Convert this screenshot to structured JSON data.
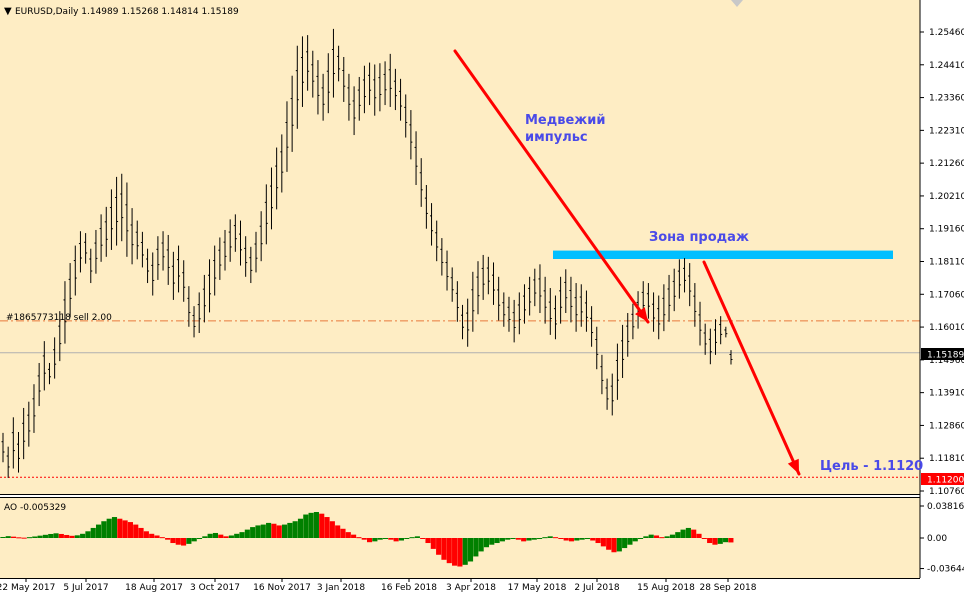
{
  "colors": {
    "background": "#FEEDC4",
    "candles": "#000000",
    "ao_up": "#008000",
    "ao_down": "#FF0000",
    "arrow": "#FF0000",
    "zone": "#00BFFF",
    "annotation_text": "#4A4AE8",
    "target_line": "#FF0000",
    "target_label_bg": "#FF0000",
    "price_label_bg": "#000000"
  },
  "header": {
    "symbol_line": "EURUSD,Daily  1.14989 1.15268 1.14814 1.15189",
    "dropdown_icon": "triangle-down-icon"
  },
  "chart_data": [
    {
      "type": "candlestick",
      "title": "EURUSD,Daily",
      "ohlc_last": {
        "open": 1.14989,
        "high": 1.15268,
        "low": 1.14814,
        "close": 1.15189
      },
      "ylim": [
        1.1062,
        1.2602
      ],
      "y_ticks": [
        "1.25460",
        "1.24410",
        "1.23360",
        "1.22310",
        "1.21260",
        "1.20210",
        "1.19160",
        "1.18110",
        "1.17060",
        "1.16010",
        "1.14960",
        "1.13910",
        "1.12860",
        "1.11810",
        "1.10760"
      ],
      "x_ticks": [
        "22 May 2017",
        "5 Jul 2017",
        "18 Aug 2017",
        "3 Oct 2017",
        "16 Nov 2017",
        "3 Jan 2018",
        "16 Feb 2018",
        "3 Apr 2018",
        "17 May 2018",
        "2 Jul 2018",
        "15 Aug 2018",
        "28 Sep 2018"
      ],
      "series": [
        {
          "name": "EURUSD",
          "points": [
            [
              1.1168,
              1.1262
            ],
            [
              1.1118,
              1.1218
            ],
            [
              1.1148,
              1.1312
            ],
            [
              1.1135,
              1.1265
            ],
            [
              1.1178,
              1.1342
            ],
            [
              1.1218,
              1.1362
            ],
            [
              1.1262,
              1.1418
            ],
            [
              1.1348,
              1.1486
            ],
            [
              1.1398,
              1.1556
            ],
            [
              1.1418,
              1.1486
            ],
            [
              1.1436,
              1.1568
            ],
            [
              1.1492,
              1.1652
            ],
            [
              1.1548,
              1.1748
            ],
            [
              1.1632,
              1.1806
            ],
            [
              1.1702,
              1.1862
            ],
            [
              1.1776,
              1.1908
            ],
            [
              1.1804,
              1.1902
            ],
            [
              1.1742,
              1.1852
            ],
            [
              1.1772,
              1.1912
            ],
            [
              1.181,
              1.1962
            ],
            [
              1.1826,
              1.1986
            ],
            [
              1.1848,
              1.2042
            ],
            [
              1.1862,
              1.2082
            ],
            [
              1.1876,
              1.2092
            ],
            [
              1.1826,
              1.2064
            ],
            [
              1.1802,
              1.1982
            ],
            [
              1.1818,
              1.1942
            ],
            [
              1.1792,
              1.1906
            ],
            [
              1.1742,
              1.1852
            ],
            [
              1.1702,
              1.184
            ],
            [
              1.1752,
              1.1892
            ],
            [
              1.1782,
              1.1908
            ],
            [
              1.1736,
              1.1896
            ],
            [
              1.1688,
              1.1842
            ],
            [
              1.1712,
              1.1862
            ],
            [
              1.1682,
              1.1815
            ],
            [
              1.1602,
              1.1732
            ],
            [
              1.1568,
              1.1668
            ],
            [
              1.1582,
              1.1712
            ],
            [
              1.1616,
              1.1768
            ],
            [
              1.1648,
              1.1818
            ],
            [
              1.1702,
              1.1862
            ],
            [
              1.1752,
              1.1888
            ],
            [
              1.1782,
              1.1912
            ],
            [
              1.181,
              1.1946
            ],
            [
              1.1842,
              1.1962
            ],
            [
              1.1798,
              1.1942
            ],
            [
              1.1762,
              1.1892
            ],
            [
              1.1742,
              1.1858
            ],
            [
              1.1776,
              1.1906
            ],
            [
              1.1812,
              1.1972
            ],
            [
              1.1866,
              1.2058
            ],
            [
              1.1914,
              1.2112
            ],
            [
              1.1978,
              1.2176
            ],
            [
              1.2032,
              1.2218
            ],
            [
              1.2098,
              1.2324
            ],
            [
              1.2162,
              1.2406
            ],
            [
              1.2236,
              1.2502
            ],
            [
              1.2306,
              1.2532
            ],
            [
              1.2358,
              1.2536
            ],
            [
              1.2336,
              1.2486
            ],
            [
              1.2282,
              1.2456
            ],
            [
              1.2262,
              1.2412
            ],
            [
              1.2286,
              1.2478
            ],
            [
              1.2336,
              1.2556
            ],
            [
              1.2388,
              1.2502
            ],
            [
              1.2322,
              1.2466
            ],
            [
              1.2262,
              1.2412
            ],
            [
              1.2216,
              1.2372
            ],
            [
              1.2262,
              1.2402
            ],
            [
              1.2286,
              1.2438
            ],
            [
              1.2312,
              1.2448
            ],
            [
              1.2278,
              1.2442
            ],
            [
              1.2292,
              1.2446
            ],
            [
              1.2312,
              1.2452
            ],
            [
              1.2306,
              1.2476
            ],
            [
              1.2296,
              1.2428
            ],
            [
              1.2262,
              1.2396
            ],
            [
              1.2208,
              1.2346
            ],
            [
              1.2138,
              1.2296
            ],
            [
              1.2056,
              1.2228
            ],
            [
              1.1986,
              1.2142
            ],
            [
              1.1916,
              1.2056
            ],
            [
              1.1862,
              1.1998
            ],
            [
              1.1812,
              1.1942
            ],
            [
              1.1766,
              1.1886
            ],
            [
              1.1718,
              1.1846
            ],
            [
              1.1682,
              1.1792
            ],
            [
              1.1618,
              1.1748
            ],
            [
              1.1562,
              1.1672
            ],
            [
              1.1538,
              1.1692
            ],
            [
              1.1586,
              1.1778
            ],
            [
              1.1642,
              1.1812
            ],
            [
              1.1688,
              1.1832
            ],
            [
              1.1706,
              1.1826
            ],
            [
              1.1672,
              1.1808
            ],
            [
              1.1622,
              1.1762
            ],
            [
              1.1602,
              1.1712
            ],
            [
              1.1586,
              1.1698
            ],
            [
              1.1552,
              1.1688
            ],
            [
              1.1578,
              1.1712
            ],
            [
              1.1612,
              1.1738
            ],
            [
              1.1638,
              1.1762
            ],
            [
              1.1668,
              1.1788
            ],
            [
              1.1646,
              1.1802
            ],
            [
              1.1612,
              1.1762
            ],
            [
              1.1576,
              1.1726
            ],
            [
              1.1562,
              1.1702
            ],
            [
              1.1612,
              1.1762
            ],
            [
              1.1646,
              1.1786
            ],
            [
              1.1616,
              1.1762
            ],
            [
              1.1586,
              1.1742
            ],
            [
              1.1602,
              1.1738
            ],
            [
              1.1586,
              1.1718
            ],
            [
              1.1538,
              1.1668
            ],
            [
              1.1466,
              1.1602
            ],
            [
              1.1386,
              1.1512
            ],
            [
              1.1336,
              1.1436
            ],
            [
              1.1318,
              1.1452
            ],
            [
              1.1368,
              1.1548
            ],
            [
              1.1438,
              1.1608
            ],
            [
              1.1506,
              1.1646
            ],
            [
              1.1562,
              1.1676
            ],
            [
              1.1596,
              1.1716
            ],
            [
              1.1628,
              1.1748
            ],
            [
              1.1628,
              1.1742
            ],
            [
              1.1586,
              1.1712
            ],
            [
              1.1562,
              1.1702
            ],
            [
              1.1588,
              1.1738
            ],
            [
              1.1618,
              1.1768
            ],
            [
              1.1652,
              1.1788
            ],
            [
              1.1692,
              1.1818
            ],
            [
              1.1712,
              1.1822
            ],
            [
              1.1668,
              1.1806
            ],
            [
              1.1602,
              1.1742
            ],
            [
              1.1542,
              1.1682
            ],
            [
              1.1512,
              1.1612
            ],
            [
              1.1482,
              1.1596
            ],
            [
              1.1512,
              1.1626
            ],
            [
              1.1546,
              1.1636
            ],
            [
              1.1568,
              1.1602
            ],
            [
              1.1481,
              1.1527
            ]
          ]
        }
      ]
    },
    {
      "type": "bar",
      "title": "AO -0.005329",
      "ylim": [
        -0.0396,
        0.0423
      ],
      "y_ticks": [
        "0.038166",
        "0.00",
        "-0.036441"
      ],
      "series": [
        {
          "name": "AO",
          "values": [
            0.0012,
            0.0022,
            0.0016,
            0.0008,
            0.0004,
            0.001,
            0.0018,
            0.0028,
            0.0038,
            0.0048,
            0.0056,
            0.0048,
            0.0036,
            0.0026,
            0.0032,
            0.005,
            0.008,
            0.012,
            0.016,
            0.02,
            0.023,
            0.025,
            0.023,
            0.021,
            0.019,
            0.016,
            0.012,
            0.008,
            0.005,
            0.003,
            0.001,
            -0.002,
            -0.006,
            -0.008,
            -0.009,
            -0.007,
            -0.004,
            -0.001,
            0.002,
            0.005,
            0.006,
            0.004,
            0.002,
            0.003,
            0.005,
            0.007,
            0.01,
            0.013,
            0.015,
            0.016,
            0.018,
            0.017,
            0.015,
            0.016,
            0.018,
            0.02,
            0.023,
            0.028,
            0.03,
            0.031,
            0.029,
            0.025,
            0.02,
            0.015,
            0.011,
            0.007,
            0.004,
            0.001,
            -0.002,
            -0.005,
            -0.004,
            -0.002,
            -0.001,
            -0.002,
            -0.004,
            -0.003,
            -0.001,
            0.001,
            0.002,
            -0.001,
            -0.006,
            -0.013,
            -0.02,
            -0.026,
            -0.03,
            -0.033,
            -0.034,
            -0.032,
            -0.028,
            -0.022,
            -0.016,
            -0.011,
            -0.008,
            -0.006,
            -0.004,
            -0.002,
            -0.001,
            -0.002,
            -0.004,
            -0.003,
            -0.002,
            -0.001,
            0.001,
            0.002,
            0.001,
            -0.001,
            -0.003,
            -0.004,
            -0.003,
            -0.002,
            -0.001,
            -0.003,
            -0.006,
            -0.01,
            -0.014,
            -0.017,
            -0.016,
            -0.012,
            -0.008,
            -0.004,
            -0.001,
            0.002,
            0.004,
            0.003,
            0.001,
            0.002,
            0.004,
            0.007,
            0.01,
            0.012,
            0.01,
            0.005,
            -0.001,
            -0.006,
            -0.008,
            -0.007,
            -0.005,
            -0.0053
          ]
        }
      ]
    }
  ],
  "annotations": {
    "bear_impulse_line1": "Медвежий",
    "bear_impulse_line2": "импульс",
    "sell_zone": "Зона продаж",
    "target": "Цель - 1.1120",
    "order_line": "#1865773118 sell 2.00"
  },
  "levels": {
    "current_price": 1.15189,
    "current_price_label": "1.15189",
    "order_price": 1.1621,
    "target_price": 1.112,
    "target_price_label": "1.11200",
    "zone_low": 1.1819,
    "zone_high": 1.1846
  }
}
